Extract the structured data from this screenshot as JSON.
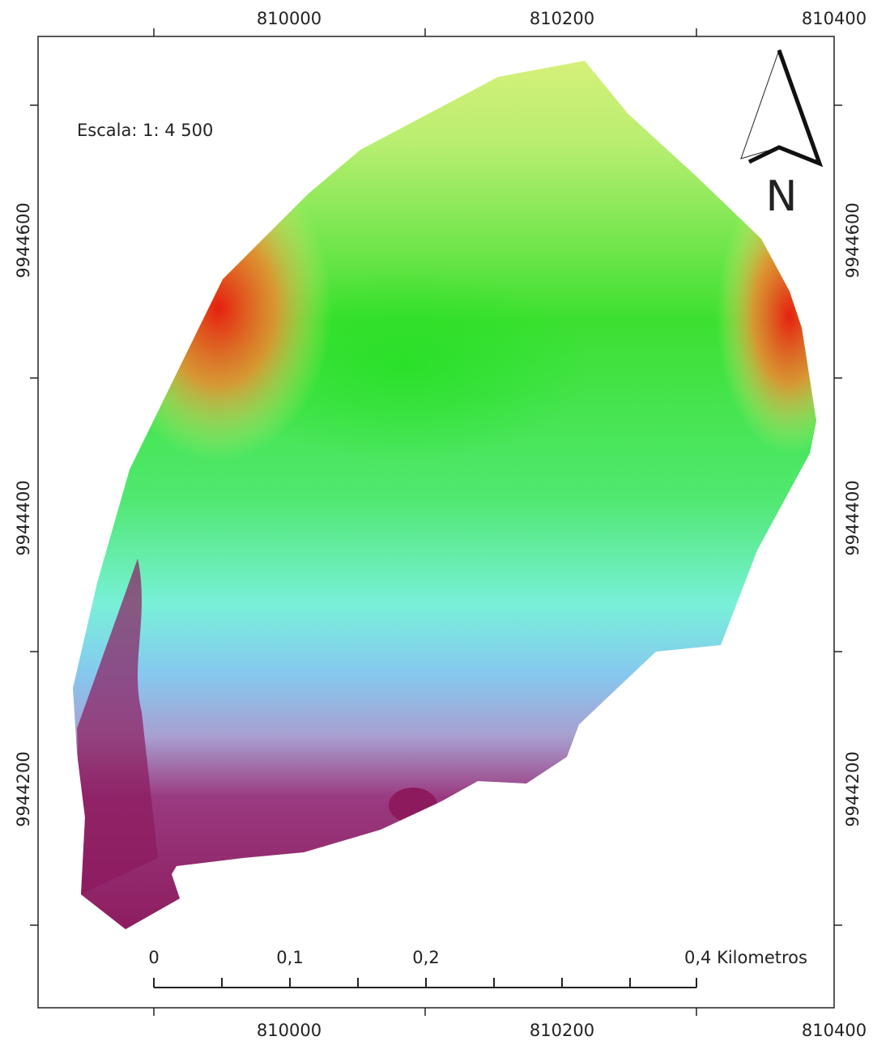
{
  "map": {
    "scale_text": "Escala: 1: 4 500",
    "north_label": "N",
    "top_labels": [
      810000,
      810200,
      810400
    ],
    "bottom_labels": [
      810000,
      810200,
      810400
    ],
    "left_labels": [
      9944600,
      9944400,
      9944200
    ],
    "right_labels": [
      9944600,
      9944400,
      9944200
    ],
    "scale_bar_labels": [
      "0",
      "0,1",
      "0,2",
      "0,4 Kilometros"
    ]
  }
}
